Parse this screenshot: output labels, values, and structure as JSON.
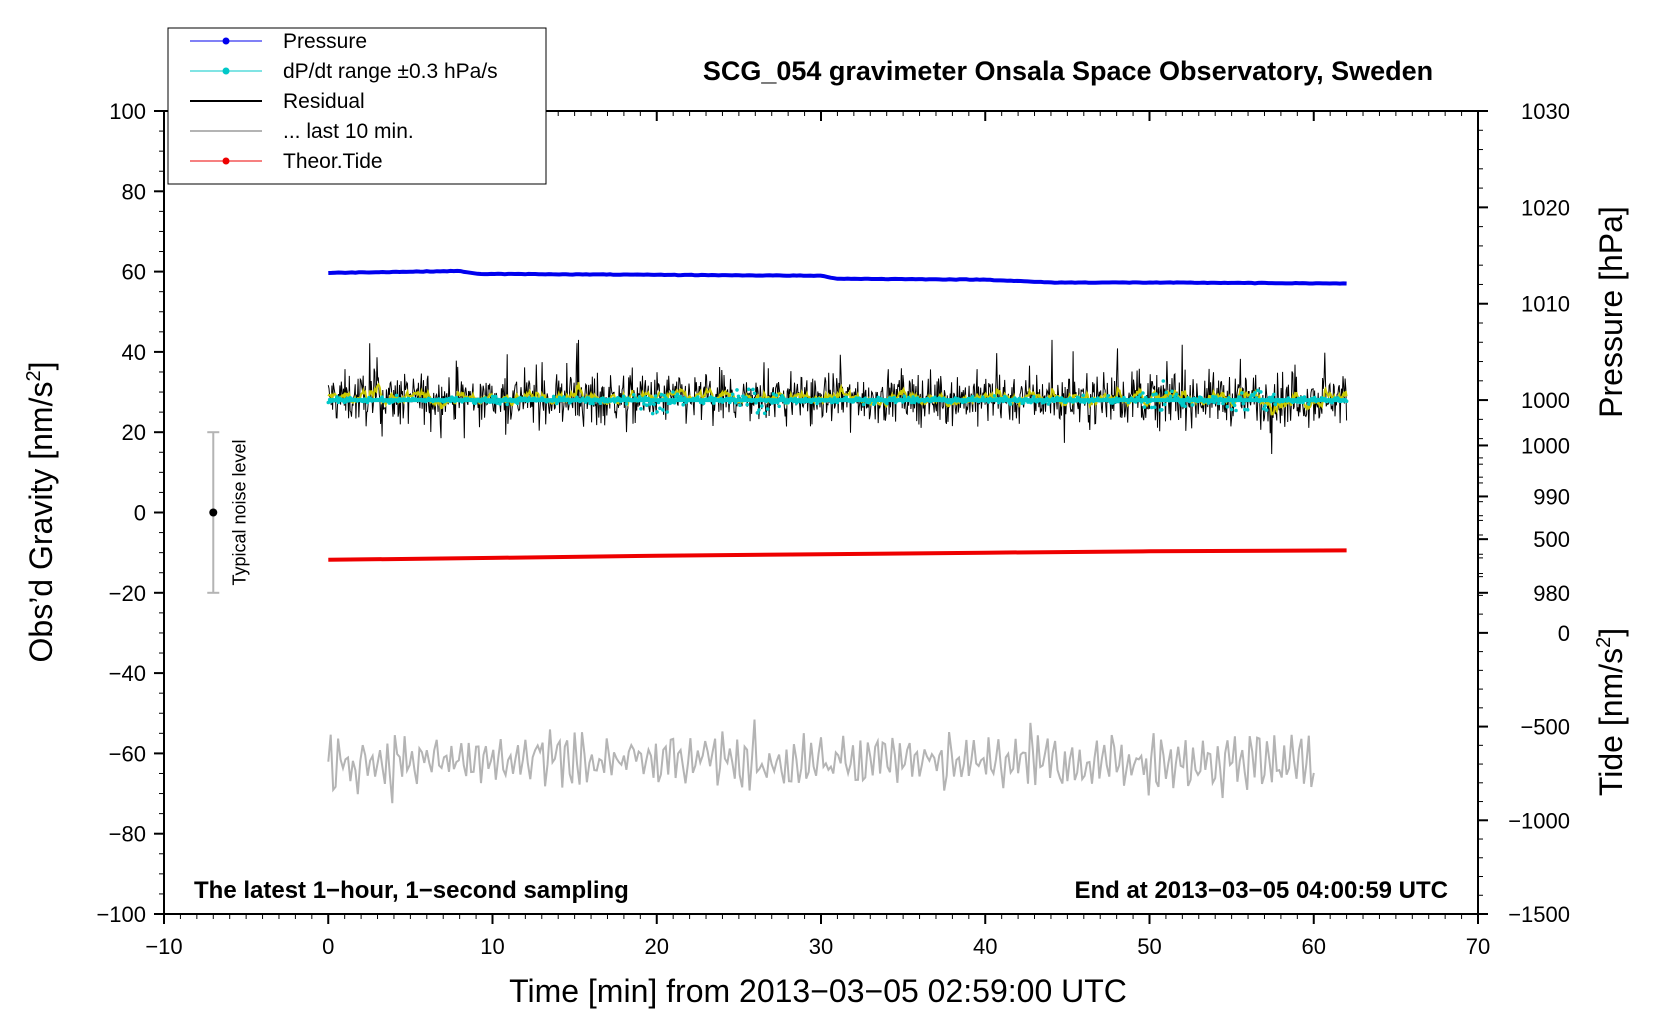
{
  "chart_data": {
    "type": "line",
    "title": "SCG_054 gravimeter Onsala Space Observatory, Sweden",
    "xlabel": "Time [min] from 2013−03−05 02:59:00 UTC",
    "ylabel_main": "Obs’d Gravity [nm/s",
    "ylabel_main_sup": "2",
    "ylabel_main_end": "]",
    "ylabel_pressure": "Pressure [hPa]",
    "ylabel_tide": "Tide [nm/s",
    "ylabel_tide_sup": "2",
    "ylabel_tide_end": "]",
    "xlim": [
      -10,
      70
    ],
    "ylim": [
      -100,
      100
    ],
    "xticks": [
      -10,
      0,
      10,
      20,
      30,
      40,
      50,
      60,
      70
    ],
    "xtick_labels": [
      "−10",
      "0",
      "10",
      "20",
      "30",
      "40",
      "50",
      "60",
      "70"
    ],
    "yticks": [
      100,
      80,
      60,
      40,
      20,
      0,
      -20,
      -40,
      -60,
      -80,
      -100
    ],
    "ytick_labels": [
      "100",
      "80",
      "60",
      "40",
      "20",
      "0",
      "−20",
      "−40",
      "−60",
      "−80",
      "−100"
    ],
    "pressure_axis": {
      "ticks": [
        1030,
        1020,
        1010,
        1000,
        990,
        980
      ],
      "tick_labels": [
        "1030",
        "1020",
        "1010",
        "1000",
        "990",
        "980"
      ],
      "range": [
        980,
        1030
      ],
      "maps_to_gravity": [
        -20,
        100
      ]
    },
    "tide_axis": {
      "ticks": [
        1000,
        500,
        0,
        -500,
        -1000,
        -1500
      ],
      "tick_labels": [
        "1000",
        "500",
        "0",
        "−500",
        "−1000",
        "−1500"
      ],
      "range": [
        -1500,
        1000
      ],
      "maps_to_gravity": [
        -100,
        16.7
      ]
    },
    "legend_position": "top-left, outside plot",
    "legend": [
      {
        "label": "Pressure",
        "color": "#0000ee",
        "style": "line-dot"
      },
      {
        "label": "dP/dt range ±0.3 hPa/s",
        "color": "#00c8c8",
        "style": "line-dot"
      },
      {
        "label": "Residual",
        "color": "#000000",
        "style": "line"
      },
      {
        "label": "... last 10 min.",
        "color": "#b4b4b4",
        "style": "line"
      },
      {
        "label": "Theor.Tide",
        "color": "#ee0000",
        "style": "line-dot"
      }
    ],
    "series": [
      {
        "name": "Pressure",
        "axis": "pressure",
        "x": [
          0,
          8,
          9,
          20,
          30,
          31,
          40,
          44,
          50,
          62
        ],
        "y": [
          1013.2,
          1013.4,
          1013.1,
          1013.0,
          1012.9,
          1012.6,
          1012.5,
          1012.2,
          1012.2,
          1012.1
        ]
      },
      {
        "name": "dP/dt range ±0.3 hPa/s",
        "axis": "pressure",
        "x": [
          0,
          62
        ],
        "y": [
          1000,
          1000
        ],
        "spread_bursts_at_min": [
          20,
          26,
          51,
          56
        ]
      },
      {
        "name": "Residual",
        "axis": "gravity",
        "x": [
          0,
          62
        ],
        "center": 28.5,
        "envelope_approx": [
          18,
          40
        ],
        "min": 11,
        "max": 43
      },
      {
        "name": "... last 10 min.",
        "axis": "gravity",
        "x": [
          0,
          60
        ],
        "center": -62,
        "envelope_approx": [
          -73,
          -49
        ]
      },
      {
        "name": "Theor.Tide",
        "axis": "tide",
        "x": [
          0,
          10,
          20,
          30,
          40,
          50,
          62
        ],
        "y": [
          390,
          400,
          412,
          420,
          428,
          435,
          440
        ]
      }
    ],
    "noise_bar": {
      "label": "Typical noise level",
      "x": -7,
      "y": 0,
      "range": [
        -20,
        20
      ]
    },
    "annotations": {
      "left": "The latest 1−hour, 1−second sampling",
      "right": "End at 2013−03−05 04:00:59 UTC"
    }
  },
  "colors": {
    "pressure": "#0000ee",
    "dpdt": "#00c8c8",
    "residual": "#000000",
    "smooth": "#c8c800",
    "last10": "#b4b4b4",
    "tide": "#ee0000"
  }
}
